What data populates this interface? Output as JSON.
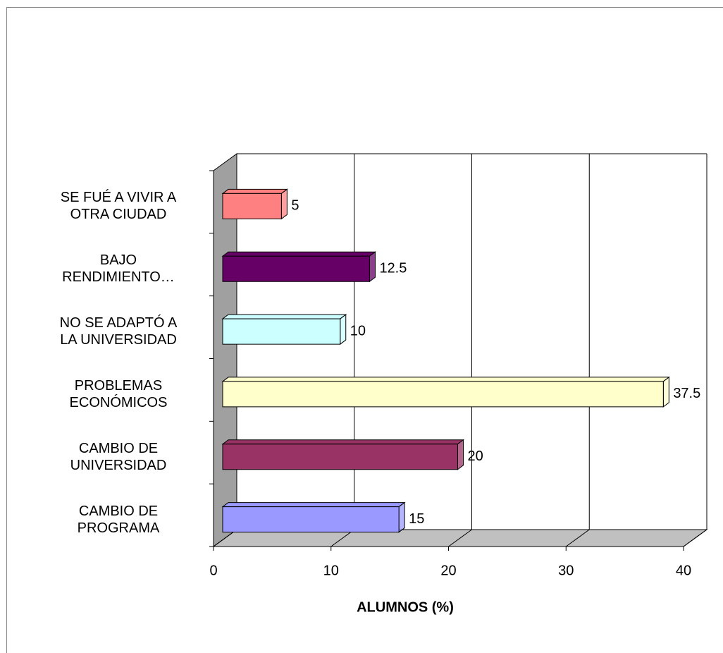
{
  "chart_data": {
    "type": "bar",
    "orientation": "horizontal",
    "categories": [
      "CAMBIO DE\nPROGRAMA",
      "CAMBIO DE\nUNIVERSIDAD",
      "PROBLEMAS\nECONÓMICOS",
      "NO SE ADAPTÓ A\nLA UNIVERSIDAD",
      "BAJO\nRENDIMIENTO…",
      "SE FUÉ A VIVIR A\nOTRA CIUDAD"
    ],
    "values": [
      15,
      20,
      37.5,
      10,
      12.5,
      5
    ],
    "colors": [
      "#9999ff",
      "#993366",
      "#ffffcc",
      "#ccffff",
      "#660066",
      "#ff8080"
    ],
    "xlabel": "ALUMNOS (%)",
    "xlim": [
      0,
      40
    ],
    "xticks": [
      0,
      10,
      20,
      30,
      40
    ],
    "grid": true
  }
}
